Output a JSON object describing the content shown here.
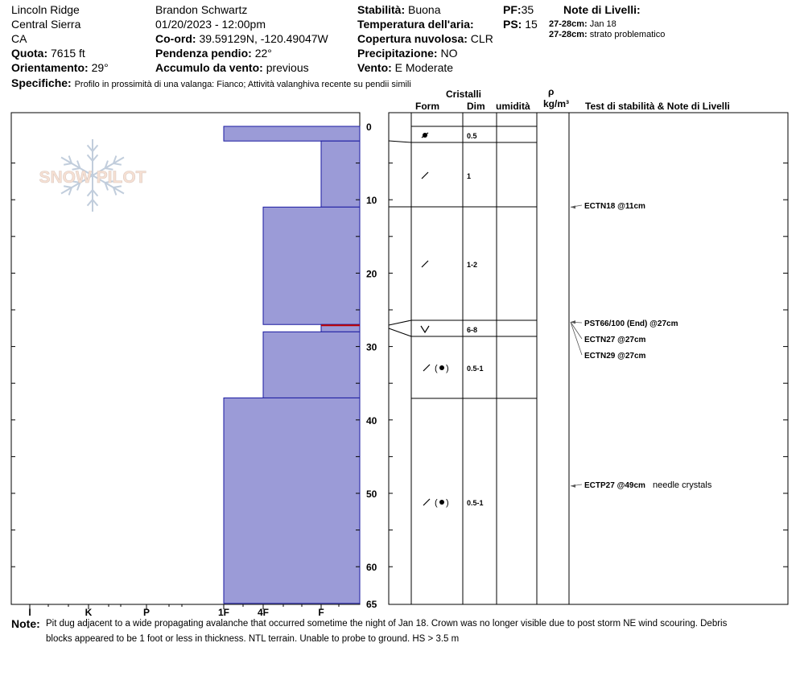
{
  "header": {
    "location": "Lincoln Ridge",
    "region": "Central Sierra",
    "state": "CA",
    "elevation_label": "Quota:",
    "elevation": "7615 ft",
    "aspect_label": "Orientamento:",
    "aspect": "29°",
    "observer": "Brandon Schwartz",
    "datetime": "01/20/2023 - 12:00pm",
    "coord_label": "Co-ord:",
    "coord": "39.59129N, -120.49047W",
    "slope_label": "Pendenza pendio:",
    "slope": "22°",
    "wind_load_label": "Accumulo da vento:",
    "wind_load": "previous",
    "stability_label": "Stabilità:",
    "stability": "Buona",
    "air_temp_label": "Temperatura dell'aria:",
    "cloud_label": "Copertura nuvolosa:",
    "cloud": "CLR",
    "precip_label": "Precipitazione:",
    "precip": "NO",
    "wind_label": "Vento:",
    "wind": "E Moderate",
    "pf_label": "PF:",
    "pf": "35",
    "ps_label": "PS:",
    "ps": "15",
    "layer_notes_title": "Note di Livelli:",
    "layer_note_1_range": "27-28cm:",
    "layer_note_1_text": "Jan 18",
    "layer_note_2_range": "27-28cm:",
    "layer_note_2_text": "strato problematico",
    "specifics_label": "Specifiche:",
    "specifics": "Profilo in prossimità di una valanga: Fianco; Attività valanghiva recente su pendii simili"
  },
  "logo_text": "SNOW PILOT",
  "columns": {
    "crystals": "Cristalli",
    "form": "Form",
    "size": "Dim",
    "moisture": "umidità",
    "rho": "ρ",
    "density_unit": "kg/m³",
    "tests": "Test di stabilità & Note di Livelli"
  },
  "note_label": "Note:",
  "note_line1": "Pit dug adjacent to a wide propagating avalanche that occurred sometime the night of Jan 18. Crown was no longer visible due to post storm NE wind scouring. Debris",
  "note_line2": "blocks appeared to be 1 foot or less in thickness. NTL terrain. Unable to probe to ground. HS > 3.5 m",
  "colors": {
    "hardness_fill": "#9b9bd7",
    "hardness_edge": "#1a1aa0",
    "weak_layer": "#c00000"
  },
  "chart_data": {
    "type": "bar",
    "depth_axis": {
      "label": "",
      "range": [
        0,
        65
      ],
      "ticks": [
        0,
        10,
        20,
        30,
        40,
        50,
        60,
        65
      ]
    },
    "hardness_scale": [
      "I",
      "K",
      "P",
      "1F",
      "4F",
      "F"
    ],
    "layers": [
      {
        "top": 0,
        "bottom": 2,
        "hardness": "1F",
        "form": "decomposing",
        "size": "0.5"
      },
      {
        "top": 2,
        "bottom": 11,
        "hardness": "F",
        "form": "faceted",
        "size": "1"
      },
      {
        "top": 11,
        "bottom": 27,
        "hardness": "4F",
        "form": "faceted",
        "size": "1-2"
      },
      {
        "top": 27,
        "bottom": 28,
        "hardness": "F",
        "form": "surface_hoar",
        "size": "6-8"
      },
      {
        "top": 28,
        "bottom": 37,
        "hardness": "4F",
        "form": "faceted_rounded",
        "size": "0.5-1"
      },
      {
        "top": 37,
        "bottom": 65,
        "hardness": "1F",
        "form": "faceted_rounded",
        "size": "0.5-1"
      }
    ],
    "weak_layer_depth": 27,
    "tests": [
      {
        "depth": 11,
        "label": "ECTN18 @11cm",
        "note": ""
      },
      {
        "depth": 27,
        "label": "PST66/100 (End) @27cm",
        "note": ""
      },
      {
        "depth": 27,
        "label": "ECTN27 @27cm",
        "note": ""
      },
      {
        "depth": 27,
        "label": "ECTN29 @27cm",
        "note": ""
      },
      {
        "depth": 49,
        "label": "ECTP27 @49cm",
        "note": "needle crystals"
      }
    ]
  }
}
